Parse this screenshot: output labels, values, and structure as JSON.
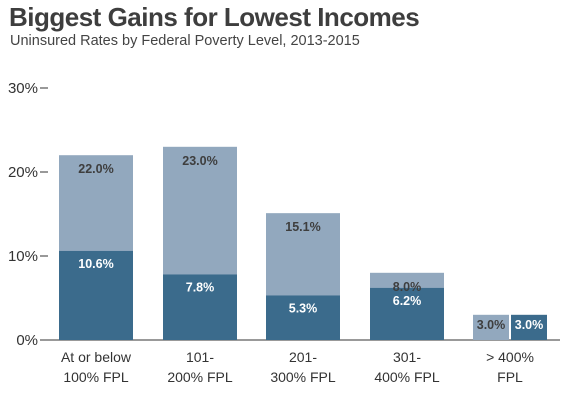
{
  "title": "Biggest Gains for Lowest Incomes",
  "subtitle": "Uninsured Rates by Federal Poverty Level, 2013-2015",
  "colors": {
    "rate_2013": "#92a8be",
    "rate_2015": "#3b6b8c",
    "label_on_light": "#3e3e3e",
    "label_on_dark": "#ffffff",
    "axis": "#333333"
  },
  "chart_data": {
    "type": "bar",
    "categories": [
      [
        "At or below",
        "100% FPL"
      ],
      [
        "101-",
        "200% FPL"
      ],
      [
        "201-",
        "300% FPL"
      ],
      [
        "301-",
        "400% FPL"
      ],
      [
        "> 400%",
        "FPL"
      ]
    ],
    "series": [
      {
        "key": "rate_2013",
        "values": [
          22.0,
          23.0,
          15.1,
          8.0,
          3.0
        ],
        "labels": [
          "22.0%",
          "23.0%",
          "15.1%",
          "8.0%",
          "3.0%"
        ]
      },
      {
        "key": "rate_2015",
        "values": [
          10.6,
          7.8,
          5.3,
          6.2,
          3.0
        ],
        "labels": [
          "10.6%",
          "7.8%",
          "5.3%",
          "6.2%",
          "3.0%"
        ]
      }
    ],
    "ylim": [
      0,
      30
    ],
    "yticks": [
      0,
      10,
      20,
      30
    ],
    "ytick_labels": [
      "0%",
      "10%",
      "20%",
      "30%"
    ],
    "grid": false
  }
}
